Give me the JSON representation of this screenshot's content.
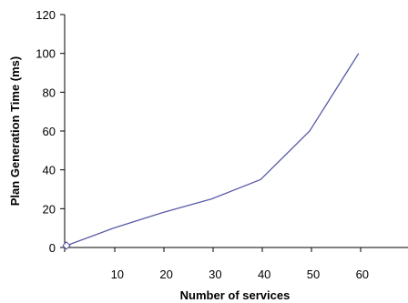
{
  "chart_data": {
    "type": "line",
    "title": "",
    "xlabel": "Number of services",
    "ylabel": "Plan Generation Time (ms)",
    "x_ticks": [
      10,
      20,
      30,
      40,
      50,
      60
    ],
    "y_ticks": [
      0,
      20,
      40,
      60,
      80,
      100,
      120
    ],
    "xlim": [
      0,
      70
    ],
    "ylim": [
      0,
      120
    ],
    "grid": false,
    "legend": "none",
    "series": [
      {
        "color": "#5a5aa8",
        "x": [
          0,
          10,
          20,
          30,
          40,
          50,
          60
        ],
        "y": [
          1,
          10,
          18,
          25,
          35,
          60,
          100
        ]
      }
    ]
  }
}
